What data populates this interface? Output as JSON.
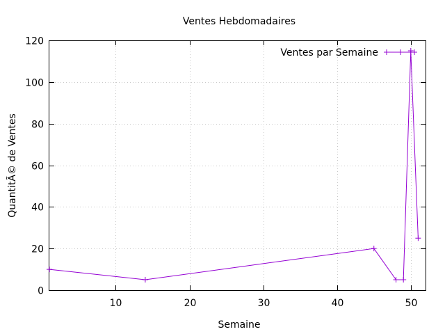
{
  "chart_data": {
    "type": "line",
    "title": "Ventes Hebdomadaires",
    "xlabel": "Semaine",
    "ylabel": "QuantitÃ© de Ventes",
    "xlim": [
      1,
      52
    ],
    "ylim": [
      0,
      120
    ],
    "x_ticks": [
      10,
      20,
      30,
      40,
      50
    ],
    "y_ticks": [
      0,
      20,
      40,
      60,
      80,
      100,
      120
    ],
    "grid": true,
    "legend_position": "top-right",
    "series": [
      {
        "name": "Ventes par Semaine",
        "color": "#9400d3",
        "marker": "plus",
        "x": [
          1,
          14,
          45,
          48,
          49,
          50,
          51
        ],
        "y": [
          10,
          5,
          20,
          5,
          5,
          115,
          25
        ]
      }
    ]
  }
}
